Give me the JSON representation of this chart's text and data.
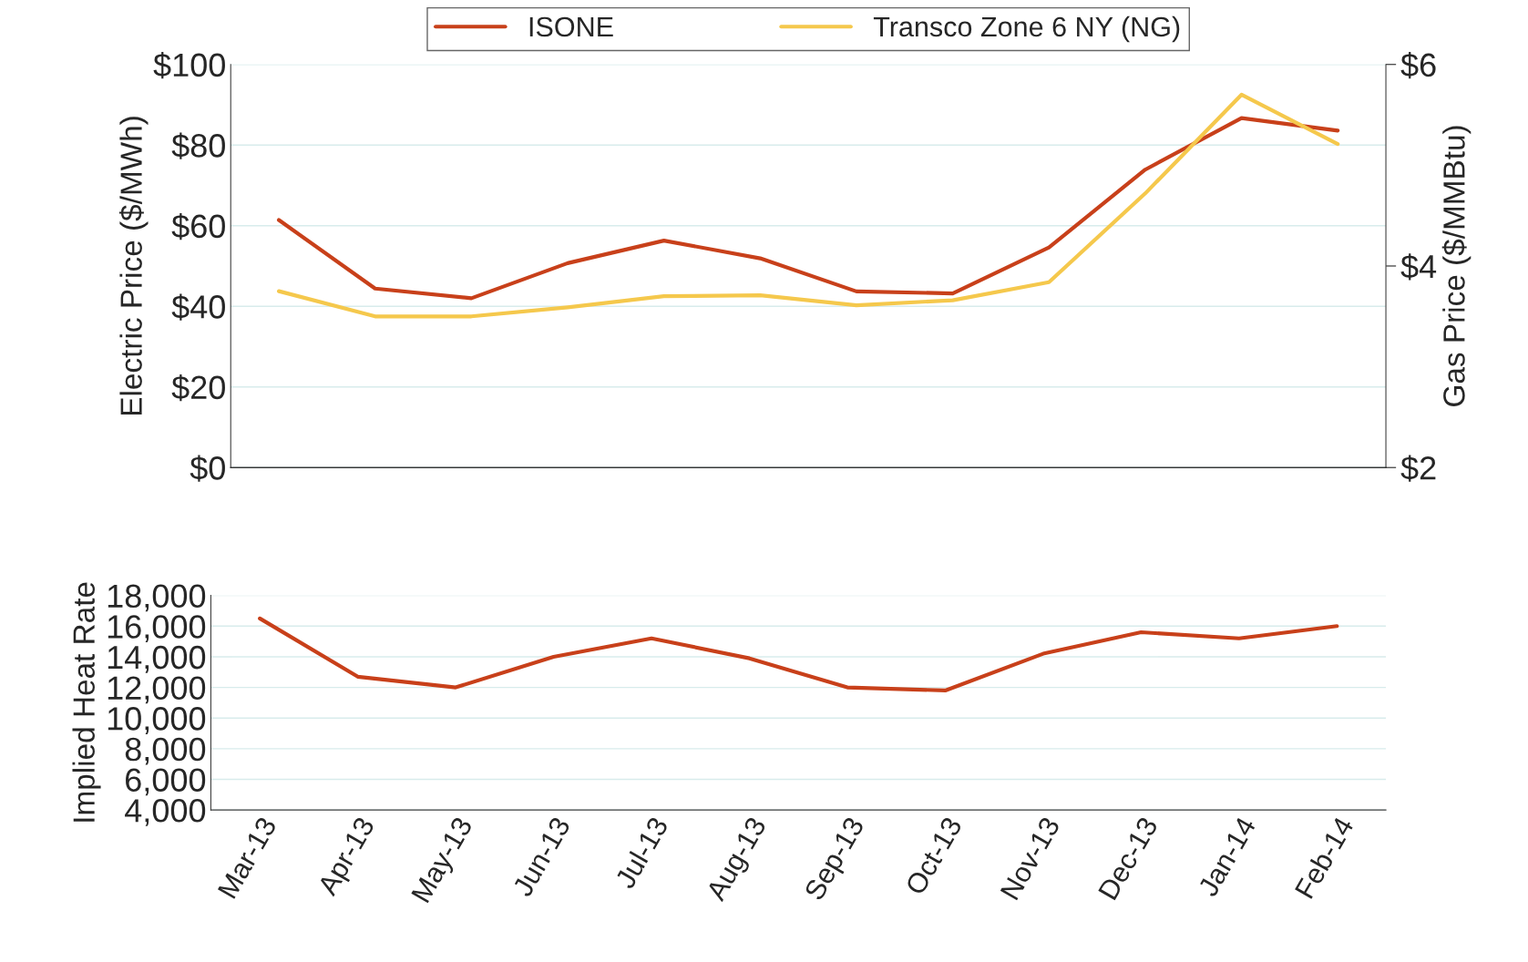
{
  "chart_data": [
    {
      "type": "line",
      "categories": [
        null,
        null,
        null,
        null,
        null,
        null,
        null,
        null,
        null,
        null,
        null,
        null
      ],
      "series": [
        {
          "name": "ISONE",
          "color": "#c8401a",
          "values": [
            61.4,
            44.4,
            42.0,
            50.7,
            56.3,
            51.9,
            43.7,
            43.2,
            54.6,
            73.9,
            86.7,
            83.6
          ]
        },
        {
          "name": "Transco Zone 6 NY (NG)",
          "color": "#f5c84c",
          "axis": "y2",
          "values": [
            3.75,
            3.5,
            3.5,
            3.59,
            3.7,
            3.71,
            3.61,
            3.66,
            3.84,
            4.72,
            5.7,
            5.21
          ]
        }
      ],
      "ylabel": "Electric Price ($/MWh)",
      "y2label": "Gas Price ($/MMBtu)",
      "ylim": [
        0,
        100
      ],
      "yticks": [
        {
          "value": 0,
          "label": "$0"
        },
        {
          "value": 20,
          "label": "$20"
        },
        {
          "value": 40,
          "label": "$40"
        },
        {
          "value": 60,
          "label": "$60"
        },
        {
          "value": 80,
          "label": "$80"
        },
        {
          "value": 100,
          "label": "$100"
        }
      ],
      "y2lim": [
        2,
        6
      ],
      "y2ticks": [
        {
          "value": 2,
          "label": "$2"
        },
        {
          "value": 4,
          "label": "$4"
        },
        {
          "value": 6,
          "label": "$6"
        }
      ],
      "grid": "y",
      "legend": "top",
      "tick_labels": "y"
    },
    {
      "type": "line",
      "categories": [
        "Mar-13",
        "Apr-13",
        "May-13",
        "Jun-13",
        "Jul-13",
        "Aug-13",
        "Sep-13",
        "Oct-13",
        "Nov-13",
        "Dec-13",
        "Jan-14",
        "Feb-14"
      ],
      "series": [
        {
          "color": "#c8401a",
          "values": [
            16500,
            12700,
            12000,
            14000,
            15200,
            13900,
            12000,
            11800,
            14200,
            15600,
            15200,
            16000
          ]
        }
      ],
      "ylabel": "Implied Heat Rate",
      "ylim": [
        4000,
        18000
      ],
      "yticks": [
        {
          "value": 4000,
          "label": "4,000"
        },
        {
          "value": 6000,
          "label": "6,000"
        },
        {
          "value": 8000,
          "label": "8,000"
        },
        {
          "value": 10000,
          "label": "10,000"
        },
        {
          "value": 12000,
          "label": "12,000"
        },
        {
          "value": 14000,
          "label": "14,000"
        },
        {
          "value": 16000,
          "label": "16,000"
        },
        {
          "value": 18000,
          "label": "18,000"
        }
      ],
      "grid": "y"
    }
  ]
}
